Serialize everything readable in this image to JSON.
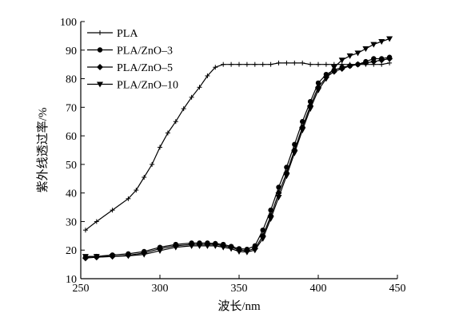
{
  "chart_data": {
    "type": "line",
    "title": "",
    "xlabel": "波长/nm",
    "ylabel": "紫外线透过率/%",
    "xlim": [
      250,
      450
    ],
    "ylim": [
      10,
      100
    ],
    "x_ticks": [
      250,
      300,
      350,
      400,
      450
    ],
    "y_ticks": [
      10,
      20,
      30,
      40,
      50,
      60,
      70,
      80,
      90,
      100
    ],
    "grid": false,
    "legend_position": "top-left",
    "series": [
      {
        "name": "PLA",
        "marker": "plus",
        "x": [
          253,
          260,
          270,
          280,
          285,
          290,
          295,
          300,
          305,
          310,
          315,
          320,
          325,
          330,
          335,
          340,
          345,
          350,
          355,
          360,
          365,
          370,
          375,
          380,
          385,
          390,
          395,
          400,
          405,
          410,
          415,
          420,
          425,
          430,
          435,
          440,
          445
        ],
        "y": [
          27,
          30,
          34,
          38,
          41,
          45.5,
          50,
          56,
          61,
          65,
          69.5,
          73.5,
          77,
          81,
          84,
          85,
          85,
          85,
          85,
          85,
          85,
          85,
          85.5,
          85.5,
          85.5,
          85.5,
          85,
          85,
          85,
          85,
          85,
          85,
          85,
          85,
          85,
          85,
          85.5
        ]
      },
      {
        "name": "PLA/ZnO–3",
        "marker": "circle",
        "x": [
          253,
          260,
          270,
          280,
          290,
          300,
          310,
          320,
          325,
          330,
          335,
          340,
          345,
          350,
          355,
          360,
          365,
          370,
          375,
          380,
          385,
          390,
          395,
          400,
          405,
          410,
          415,
          420,
          425,
          430,
          435,
          440,
          445
        ],
        "y": [
          17.5,
          17.8,
          18.3,
          18.7,
          19.5,
          21,
          22,
          22.5,
          22.5,
          22.5,
          22.3,
          22,
          21.3,
          20.5,
          20.3,
          21.5,
          27,
          34,
          42,
          49,
          57,
          65,
          72,
          78.5,
          81.5,
          83,
          84,
          84.5,
          85,
          86,
          87,
          87,
          87.5
        ]
      },
      {
        "name": "PLA/ZnO–5",
        "marker": "diamond",
        "x": [
          253,
          260,
          270,
          280,
          290,
          300,
          310,
          320,
          325,
          330,
          335,
          340,
          345,
          350,
          355,
          360,
          365,
          370,
          375,
          380,
          385,
          390,
          395,
          400,
          405,
          410,
          415,
          420,
          425,
          430,
          435,
          440,
          445
        ],
        "y": [
          17.2,
          17.5,
          17.8,
          18.2,
          19,
          20.5,
          21.5,
          22,
          22,
          22,
          22,
          21.5,
          21,
          20,
          19.8,
          20.5,
          25,
          32,
          40,
          47,
          55,
          63,
          70.5,
          77,
          80.5,
          82.5,
          83.5,
          84.5,
          85,
          85.5,
          86,
          86.5,
          87
        ]
      },
      {
        "name": "PLA/ZnO–10",
        "marker": "triangle-down",
        "x": [
          253,
          260,
          270,
          280,
          290,
          300,
          310,
          320,
          325,
          330,
          335,
          340,
          345,
          350,
          355,
          360,
          365,
          370,
          375,
          380,
          385,
          390,
          395,
          400,
          405,
          410,
          415,
          420,
          425,
          430,
          435,
          440,
          445
        ],
        "y": [
          17.8,
          17.8,
          17.8,
          18,
          18.5,
          19.8,
          21,
          21.5,
          21.5,
          21.5,
          21.5,
          21,
          20.5,
          19.5,
          19.3,
          20,
          24,
          31,
          38.5,
          46,
          54,
          62,
          69.5,
          76,
          80,
          84,
          86.5,
          88,
          89,
          90.5,
          92,
          93,
          94
        ]
      }
    ]
  }
}
